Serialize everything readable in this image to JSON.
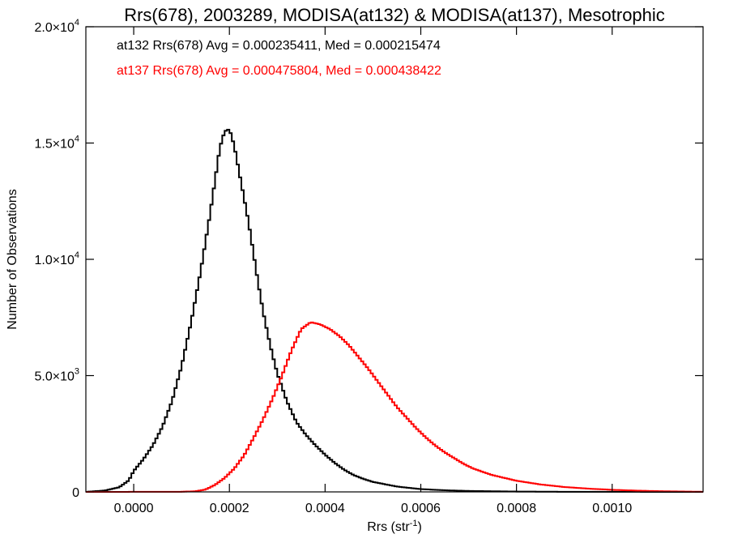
{
  "chart_data": {
    "type": "histogram",
    "title": "Rrs(678), 2003289, MODISA(at132) & MODISA(at137), Mesotrophic",
    "xlabel": "Rrs (str",
    "xlabel_sup": "-1",
    "xlabel_close": ")",
    "ylabel": "Number of Observations",
    "xlim": [
      -0.0001,
      0.00119
    ],
    "ylim": [
      0,
      20000
    ],
    "x_ticks": [
      {
        "value": 0.0,
        "label": "0.0000"
      },
      {
        "value": 0.0002,
        "label": "0.0002"
      },
      {
        "value": 0.0004,
        "label": "0.0004"
      },
      {
        "value": 0.0006,
        "label": "0.0006"
      },
      {
        "value": 0.0008,
        "label": "0.0008"
      },
      {
        "value": 0.001,
        "label": "0.0010"
      }
    ],
    "y_ticks": [
      {
        "value": 0,
        "mant": "0",
        "exp": ""
      },
      {
        "value": 5000,
        "mant": "5.0×10",
        "exp": "3"
      },
      {
        "value": 10000,
        "mant": "1.0×10",
        "exp": "4"
      },
      {
        "value": 15000,
        "mant": "1.5×10",
        "exp": "4"
      },
      {
        "value": 20000,
        "mant": "2.0×10",
        "exp": "4"
      }
    ],
    "series": [
      {
        "name": "at132",
        "color": "#000000",
        "annotation": "at132 Rrs(678) Avg = 0.000235411, Med = 0.000215474",
        "points": [
          [
            -0.0001,
            0
          ],
          [
            -6e-05,
            60
          ],
          [
            -3e-05,
            200
          ],
          [
            -1e-05,
            500
          ],
          [
            0.0,
            900
          ],
          [
            2e-05,
            1400
          ],
          [
            4e-05,
            2000
          ],
          [
            6e-05,
            2800
          ],
          [
            8e-05,
            3900
          ],
          [
            0.0001,
            5400
          ],
          [
            0.00012,
            7300
          ],
          [
            0.00014,
            9500
          ],
          [
            0.00016,
            12000
          ],
          [
            0.00017,
            13400
          ],
          [
            0.00018,
            14800
          ],
          [
            0.00019,
            15500
          ],
          [
            0.0002,
            15600
          ],
          [
            0.00021,
            14900
          ],
          [
            0.00022,
            13800
          ],
          [
            0.00023,
            12700
          ],
          [
            0.00024,
            11600
          ],
          [
            0.00025,
            10300
          ],
          [
            0.00026,
            9000
          ],
          [
            0.00027,
            7800
          ],
          [
            0.00028,
            6800
          ],
          [
            0.00029,
            5900
          ],
          [
            0.0003,
            5100
          ],
          [
            0.00032,
            3900
          ],
          [
            0.00034,
            3000
          ],
          [
            0.00036,
            2450
          ],
          [
            0.00038,
            2000
          ],
          [
            0.0004,
            1600
          ],
          [
            0.00042,
            1250
          ],
          [
            0.00044,
            950
          ],
          [
            0.00046,
            720
          ],
          [
            0.00048,
            560
          ],
          [
            0.0005,
            430
          ],
          [
            0.00055,
            230
          ],
          [
            0.0006,
            120
          ],
          [
            0.00065,
            70
          ],
          [
            0.0007,
            40
          ],
          [
            0.0008,
            15
          ],
          [
            0.0009,
            5
          ],
          [
            0.00119,
            0
          ]
        ]
      },
      {
        "name": "at137",
        "color": "#ff0000",
        "annotation": "at137 Rrs(678) Avg = 0.000475804, Med = 0.000438422",
        "points": [
          [
            -0.0001,
            0
          ],
          [
            0.0001,
            5
          ],
          [
            0.00013,
            30
          ],
          [
            0.00015,
            100
          ],
          [
            0.00017,
            300
          ],
          [
            0.00019,
            600
          ],
          [
            0.00021,
            1000
          ],
          [
            0.00023,
            1550
          ],
          [
            0.00025,
            2300
          ],
          [
            0.00027,
            3100
          ],
          [
            0.00029,
            4000
          ],
          [
            0.00031,
            5000
          ],
          [
            0.00033,
            6100
          ],
          [
            0.00035,
            7000
          ],
          [
            0.00037,
            7300
          ],
          [
            0.00039,
            7200
          ],
          [
            0.00041,
            7000
          ],
          [
            0.00043,
            6700
          ],
          [
            0.00045,
            6300
          ],
          [
            0.00047,
            5800
          ],
          [
            0.00049,
            5300
          ],
          [
            0.00051,
            4750
          ],
          [
            0.00053,
            4200
          ],
          [
            0.00055,
            3650
          ],
          [
            0.00057,
            3200
          ],
          [
            0.00059,
            2750
          ],
          [
            0.00061,
            2350
          ],
          [
            0.00063,
            2000
          ],
          [
            0.00065,
            1700
          ],
          [
            0.00067,
            1450
          ],
          [
            0.00069,
            1200
          ],
          [
            0.00071,
            1000
          ],
          [
            0.00075,
            720
          ],
          [
            0.0008,
            480
          ],
          [
            0.00085,
            320
          ],
          [
            0.0009,
            210
          ],
          [
            0.00095,
            140
          ],
          [
            0.001,
            90
          ],
          [
            0.00105,
            55
          ],
          [
            0.0011,
            30
          ],
          [
            0.00115,
            15
          ],
          [
            0.00119,
            5
          ]
        ]
      }
    ]
  }
}
